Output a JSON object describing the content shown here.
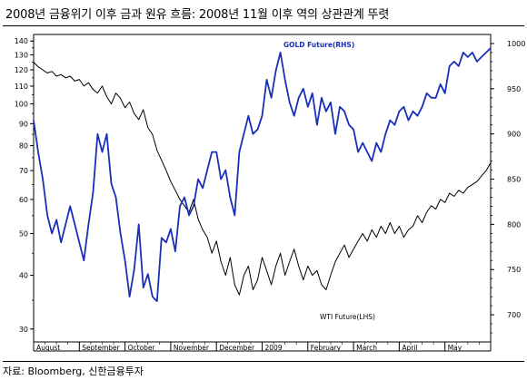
{
  "title": "2008년 금융위기 이후 금과 원유 흐름: 2008년 11월 이후 역의 상관관계 뚜렷",
  "source": "자료: Bloomberg, 신한금융투자",
  "chart_data": {
    "type": "line",
    "title": "2008년 금융위기 이후 금과 원유 흐름: 2008년 11월 이후 역의 상관관계 뚜렷",
    "x_categories": [
      "August",
      "September",
      "October",
      "November",
      "December",
      "2009",
      "February",
      "March",
      "April",
      "May"
    ],
    "y_left": {
      "scale": "log",
      "ticks": [
        30,
        40,
        50,
        60,
        70,
        80,
        90,
        100,
        110,
        120,
        130,
        140
      ],
      "range": [
        28,
        145
      ]
    },
    "y_right": {
      "scale": "linear",
      "ticks": [
        700,
        750,
        800,
        850,
        900,
        950,
        1000
      ],
      "range": [
        670,
        1010
      ]
    },
    "series": [
      {
        "name": "WTI Future(LHS)",
        "axis": "left",
        "color": "#000000",
        "x": [
          0,
          1,
          2,
          3,
          4,
          5,
          6,
          7,
          8,
          9,
          10,
          11,
          12,
          13,
          14,
          15,
          16,
          17,
          18,
          19,
          20,
          21,
          22,
          23,
          24,
          25,
          26,
          27,
          28,
          29,
          30,
          31,
          32,
          33,
          34,
          35,
          36,
          37,
          38,
          39,
          40,
          41,
          42,
          43,
          44,
          45,
          46,
          47,
          48,
          49,
          50,
          51,
          52,
          53,
          54,
          55,
          56,
          57,
          58,
          59,
          60,
          61,
          62,
          63,
          64,
          65,
          66,
          67,
          68,
          69,
          70,
          71,
          72,
          73,
          74,
          75,
          76,
          77,
          78,
          79,
          80,
          81,
          82,
          83,
          84,
          85,
          86,
          87,
          88,
          89,
          90,
          91,
          92,
          93,
          94,
          95,
          96,
          97,
          98,
          99,
          100
        ],
        "values": [
          125,
          122,
          120,
          118,
          119,
          116,
          117,
          115,
          116,
          113,
          114,
          110,
          112,
          108,
          106,
          110,
          104,
          100,
          106,
          103,
          98,
          101,
          95,
          92,
          97,
          88,
          85,
          78,
          74,
          70,
          66,
          63,
          60,
          58,
          56,
          60,
          54,
          51,
          49,
          45,
          48,
          43,
          40,
          44,
          38,
          36,
          40,
          42,
          37,
          39,
          44,
          41,
          38,
          42,
          45,
          40,
          43,
          46,
          42,
          39,
          42,
          40,
          41,
          38,
          37,
          40,
          43,
          45,
          47,
          44,
          46,
          48,
          50,
          48,
          51,
          49,
          52,
          50,
          53,
          50,
          52,
          49,
          51,
          52,
          55,
          53,
          56,
          58,
          57,
          60,
          59,
          62,
          61,
          63,
          62,
          64,
          65,
          66,
          68,
          70,
          73
        ]
      },
      {
        "name": "GOLD Future(RHS)",
        "axis": "right",
        "color": "#1a2fb8",
        "x": [
          0,
          1,
          2,
          3,
          4,
          5,
          6,
          7,
          8,
          9,
          10,
          11,
          12,
          13,
          14,
          15,
          16,
          17,
          18,
          19,
          20,
          21,
          22,
          23,
          24,
          25,
          26,
          27,
          28,
          29,
          30,
          31,
          32,
          33,
          34,
          35,
          36,
          37,
          38,
          39,
          40,
          41,
          42,
          43,
          44,
          45,
          46,
          47,
          48,
          49,
          50,
          51,
          52,
          53,
          54,
          55,
          56,
          57,
          58,
          59,
          60,
          61,
          62,
          63,
          64,
          65,
          66,
          67,
          68,
          69,
          70,
          71,
          72,
          73,
          74,
          75,
          76,
          77,
          78,
          79,
          80,
          81,
          82,
          83,
          84,
          85,
          86,
          87,
          88,
          89,
          90,
          91,
          92,
          93,
          94,
          95,
          96,
          97,
          98,
          99,
          100
        ],
        "values": [
          915,
          880,
          850,
          810,
          790,
          805,
          780,
          800,
          820,
          800,
          780,
          760,
          800,
          835,
          900,
          880,
          900,
          845,
          830,
          790,
          760,
          720,
          750,
          800,
          730,
          745,
          720,
          715,
          785,
          780,
          795,
          770,
          820,
          830,
          810,
          820,
          850,
          840,
          860,
          880,
          880,
          850,
          860,
          830,
          810,
          880,
          900,
          920,
          900,
          905,
          920,
          960,
          940,
          970,
          990,
          960,
          935,
          920,
          940,
          950,
          930,
          945,
          910,
          940,
          925,
          935,
          900,
          930,
          925,
          910,
          905,
          880,
          890,
          880,
          870,
          890,
          880,
          900,
          915,
          910,
          925,
          930,
          915,
          925,
          920,
          930,
          945,
          940,
          940,
          955,
          945,
          975,
          980,
          975,
          990,
          985,
          990,
          980,
          985,
          990,
          995
        ]
      }
    ],
    "annotations": [
      {
        "text": "GOLD Future(RHS)",
        "color": "#1a2fb8"
      },
      {
        "text": "WTI Future(LHS)",
        "color": "#000000"
      }
    ]
  }
}
